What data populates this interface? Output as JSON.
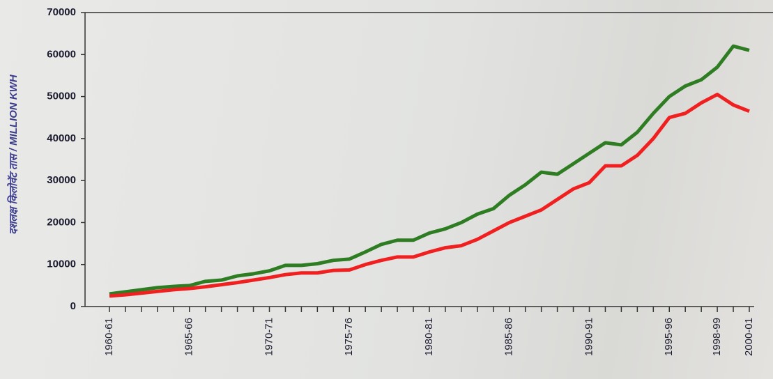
{
  "chart_data": {
    "type": "line",
    "y_label": "दशलक्ष किलोवॅट तास / MILLION KWH",
    "categories": [
      "1960-61",
      null,
      null,
      null,
      null,
      "1965-66",
      null,
      null,
      null,
      null,
      "1970-71",
      null,
      null,
      null,
      null,
      "1975-76",
      null,
      null,
      null,
      null,
      "1980-81",
      null,
      null,
      null,
      null,
      "1985-86",
      null,
      null,
      null,
      null,
      "1990-91",
      null,
      null,
      null,
      null,
      "1995-96",
      null,
      null,
      "1998-99",
      null,
      "2000-01"
    ],
    "series": [
      {
        "color": "#2e7d22",
        "values": [
          3000,
          3500,
          4000,
          4500,
          4800,
          5000,
          6000,
          6300,
          7300,
          7800,
          8500,
          9800,
          9800,
          10200,
          11000,
          11300,
          13000,
          14800,
          15800,
          15800,
          17500,
          18500,
          20000,
          22000,
          23300,
          26500,
          29000,
          32000,
          31500,
          34000,
          36500,
          39000,
          38500,
          41500,
          46000,
          50000,
          52500,
          54000,
          57000,
          62000,
          61000
        ]
      },
      {
        "color": "#f02020",
        "values": [
          2500,
          2800,
          3200,
          3600,
          4000,
          4300,
          4700,
          5200,
          5700,
          6300,
          6900,
          7600,
          8000,
          8000,
          8600,
          8700,
          10000,
          11000,
          11800,
          11800,
          13000,
          14000,
          14500,
          16000,
          18000,
          20000,
          21500,
          23000,
          25500,
          28000,
          29500,
          33500,
          33500,
          36000,
          40000,
          45000,
          46000,
          48500,
          50500,
          48000,
          46500
        ]
      }
    ],
    "ylim": [
      0,
      70000
    ],
    "yticks": [
      0,
      10000,
      20000,
      30000,
      40000,
      50000,
      60000,
      70000
    ]
  }
}
